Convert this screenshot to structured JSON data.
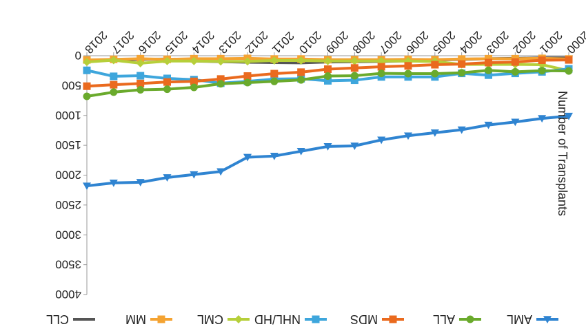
{
  "chart_data": {
    "type": "line",
    "orientation": "rotated 180 degrees (mirrored image)",
    "title": "",
    "xlabel": "",
    "ylabel": "Number of Transplants",
    "x": [
      "2000",
      "2001",
      "2002",
      "2003",
      "2004",
      "2005",
      "2006",
      "2007",
      "2008",
      "2009",
      "2010",
      "2011",
      "2012",
      "2013",
      "2014",
      "2015",
      "2016",
      "2017",
      "2018"
    ],
    "ylim": [
      0,
      4000
    ],
    "yticks": [
      "0",
      "500",
      "1000",
      "1500",
      "2000",
      "2500",
      "3000",
      "3500",
      "4000"
    ],
    "grid": false,
    "legend_position": "bottom",
    "series": [
      {
        "name": "AML",
        "color": "#2f84d1",
        "marker": "triangle",
        "values": [
          1010,
          1050,
          1110,
          1160,
          1240,
          1290,
          1340,
          1410,
          1510,
          1520,
          1600,
          1680,
          1700,
          1940,
          1990,
          2040,
          2120,
          2130,
          2180
        ]
      },
      {
        "name": "ALL",
        "color": "#6aaa2c",
        "marker": "circle",
        "values": [
          255,
          250,
          270,
          245,
          285,
          300,
          300,
          295,
          335,
          340,
          405,
          430,
          450,
          470,
          530,
          560,
          570,
          610,
          680
        ]
      },
      {
        "name": "MDS",
        "color": "#ea6a1e",
        "marker": "square",
        "values": [
          70,
          75,
          105,
          115,
          140,
          150,
          170,
          185,
          205,
          225,
          275,
          300,
          340,
          390,
          430,
          440,
          465,
          485,
          510
        ]
      },
      {
        "name": "NHL/HD",
        "color": "#3ea6dc",
        "marker": "square",
        "values": [
          220,
          270,
          295,
          325,
          295,
          355,
          355,
          355,
          410,
          420,
          385,
          390,
          430,
          460,
          400,
          380,
          335,
          345,
          245
        ]
      },
      {
        "name": "CML",
        "color": "#b6cf3a",
        "marker": "diamond",
        "values": [
          250,
          150,
          145,
          145,
          145,
          95,
          90,
          90,
          90,
          90,
          80,
          80,
          95,
          95,
          90,
          90,
          125,
          75,
          105
        ]
      },
      {
        "name": "MM",
        "color": "#f4a332",
        "marker": "square",
        "values": [
          55,
          45,
          50,
          50,
          55,
          65,
          60,
          65,
          65,
          65,
          55,
          55,
          45,
          50,
          50,
          60,
          50,
          60,
          70
        ]
      },
      {
        "name": "CLL",
        "color": "#555555",
        "marker": "none",
        "values": [
          35,
          35,
          45,
          50,
          60,
          70,
          85,
          95,
          100,
          105,
          120,
          115,
          110,
          100,
          90,
          55,
          60,
          75,
          85
        ]
      }
    ]
  }
}
